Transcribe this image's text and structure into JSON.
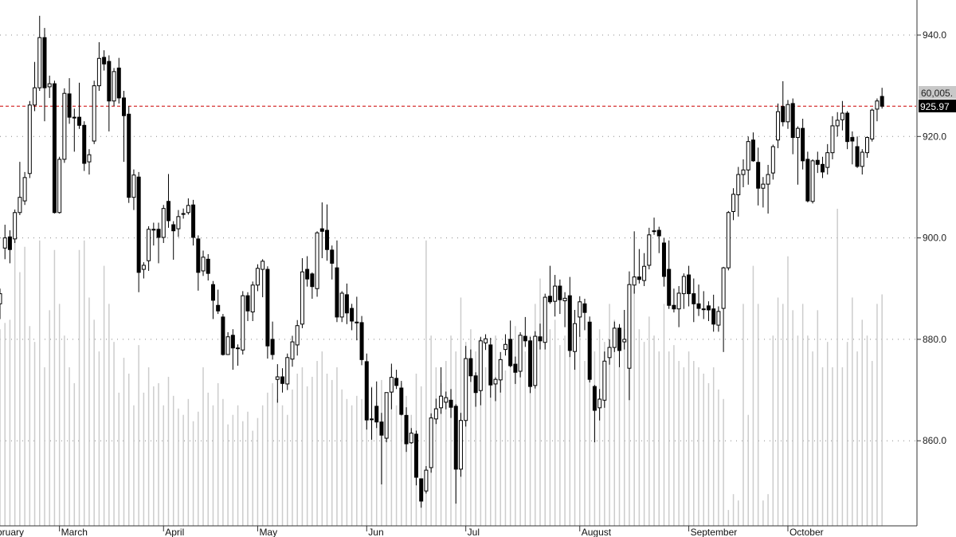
{
  "chart_data": {
    "type": "candlestick",
    "title": "",
    "xlabel": "",
    "ylabel": "",
    "ylim": [
      844,
      947
    ],
    "grid": true,
    "y_ticks": [
      "860.0",
      "880.0",
      "900.0",
      "920.0",
      "940.0"
    ],
    "y_tick_values": [
      860,
      880,
      900,
      920,
      940
    ],
    "months": [
      {
        "label": "bruary",
        "index": -5
      },
      {
        "label": "March",
        "index": 12
      },
      {
        "label": "April",
        "index": 33
      },
      {
        "label": "May",
        "index": 52
      },
      {
        "label": "Jun",
        "index": 74
      },
      {
        "label": "Jul",
        "index": 94
      },
      {
        "label": "August",
        "index": 117
      },
      {
        "label": "September",
        "index": 139
      },
      {
        "label": "October",
        "index": 159
      }
    ],
    "last_price": 925.97,
    "last_price_label": "925.97",
    "volume_label": "60,005.",
    "colors": {
      "up": "#ffffff",
      "down": "#000000",
      "wick": "#000000",
      "volume": "#cccccc",
      "price_line": "#cc0000",
      "grid": "#888888"
    },
    "ohlc": [
      [
        887,
        890,
        884,
        889
      ],
      [
        898,
        902.6,
        895.8,
        900
      ],
      [
        900.2,
        901.5,
        895,
        897.7
      ],
      [
        899.8,
        905.6,
        899,
        905
      ],
      [
        905,
        915,
        904.5,
        908
      ],
      [
        907.3,
        913,
        906.5,
        911.9
      ],
      [
        912.7,
        927,
        911.8,
        926.2
      ],
      [
        926.2,
        934.7,
        925,
        929.6
      ],
      [
        929.6,
        943.8,
        929,
        939.5
      ],
      [
        939.5,
        941.4,
        923,
        929.6
      ],
      [
        929.8,
        932,
        927.6,
        930.4
      ],
      [
        930.4,
        931,
        904.8,
        905
      ],
      [
        905,
        916,
        904.8,
        915.5
      ],
      [
        915.5,
        929.5,
        914.8,
        928.5
      ],
      [
        928.4,
        931.5,
        922.5,
        923.8
      ],
      [
        923.8,
        925.5,
        917,
        923.8
      ],
      [
        923.8,
        930.6,
        921.5,
        922.2
      ],
      [
        922.2,
        923,
        913.2,
        914.7
      ],
      [
        915,
        917.5,
        912.5,
        916.4
      ],
      [
        919.1,
        931,
        918.5,
        930
      ],
      [
        930,
        938.6,
        929,
        935.4
      ],
      [
        935.6,
        937,
        933,
        934.3
      ],
      [
        934.8,
        936,
        921,
        927
      ],
      [
        927,
        933.5,
        926,
        932.8
      ],
      [
        933.5,
        935.5,
        926.5,
        927.6
      ],
      [
        927.6,
        929,
        915,
        924.1
      ],
      [
        924.4,
        926,
        906.9,
        908
      ],
      [
        908,
        913.5,
        905.5,
        912.4
      ],
      [
        912,
        913,
        889.3,
        893.2
      ],
      [
        893.8,
        895.2,
        892,
        894.6
      ],
      [
        895.5,
        902.3,
        893.5,
        901.7
      ],
      [
        901.7,
        903,
        898.5,
        901.7
      ],
      [
        901.7,
        903,
        895,
        900.1
      ],
      [
        900.1,
        906.5,
        899,
        905.8
      ],
      [
        907.2,
        912.6,
        902,
        903.4
      ],
      [
        902.6,
        903.3,
        895.7,
        901.4
      ],
      [
        901.8,
        905.5,
        900.2,
        904.2
      ],
      [
        904.8,
        905.8,
        903.8,
        904.8
      ],
      [
        905,
        907.8,
        904.6,
        906.4
      ],
      [
        906.5,
        907.5,
        898.5,
        900.1
      ],
      [
        899.8,
        900.5,
        889.6,
        893.2
      ],
      [
        893.5,
        897.5,
        892.5,
        896.2
      ],
      [
        895.8,
        896.8,
        891.6,
        893
      ],
      [
        890.8,
        891.5,
        884,
        887.7
      ],
      [
        886.7,
        889.8,
        885,
        885.6
      ],
      [
        884.4,
        885,
        876.8,
        877
      ],
      [
        877,
        881.4,
        877,
        880.5
      ],
      [
        880.8,
        882,
        874,
        878.3
      ],
      [
        878.3,
        879,
        874.8,
        878.3
      ],
      [
        877.9,
        889.5,
        877,
        888.6
      ],
      [
        888.6,
        889.3,
        883.6,
        885.6
      ],
      [
        885.4,
        891.4,
        883.6,
        890.7
      ],
      [
        890.7,
        894.8,
        889.5,
        894
      ],
      [
        893.8,
        895.8,
        888.3,
        895.4
      ],
      [
        893.8,
        894.4,
        876.2,
        878.7
      ],
      [
        880,
        883.5,
        876,
        877
      ],
      [
        872.1,
        875.1,
        867.5,
        872.6
      ],
      [
        872.6,
        874.3,
        869.5,
        871.3
      ],
      [
        871.2,
        877.2,
        870,
        876.4
      ],
      [
        876.1,
        880.7,
        874.6,
        879.5
      ],
      [
        878.9,
        883.8,
        876.8,
        882.7
      ],
      [
        883,
        896,
        882.2,
        893.3
      ],
      [
        893.8,
        896.4,
        890.4,
        891.9
      ],
      [
        892.9,
        893.2,
        888,
        890.4
      ],
      [
        890,
        901.3,
        888.4,
        901
      ],
      [
        901.8,
        907,
        896,
        901.3
      ],
      [
        901.5,
        906.6,
        895.5,
        897.7
      ],
      [
        897.6,
        898.5,
        891.8,
        895
      ],
      [
        894.1,
        899.5,
        883.4,
        884.4
      ],
      [
        884.4,
        889.5,
        883.4,
        889.1
      ],
      [
        888.8,
        891,
        883,
        885.2
      ],
      [
        886.1,
        887,
        881.8,
        883.6
      ],
      [
        883.4,
        888.4,
        879.8,
        883.4
      ],
      [
        883.3,
        884.6,
        874.9,
        876
      ],
      [
        875.6,
        877.2,
        862.2,
        864.1
      ],
      [
        864.3,
        870.5,
        860.2,
        864.3
      ],
      [
        866.8,
        871.7,
        862.5,
        863.7
      ],
      [
        863.7,
        865.5,
        851.4,
        861.1
      ],
      [
        860.5,
        869.5,
        859.7,
        869.5
      ],
      [
        869.6,
        875.2,
        866.2,
        872.5
      ],
      [
        872.3,
        874,
        870.2,
        870.9
      ],
      [
        870.4,
        871.8,
        865,
        865.2
      ],
      [
        865,
        866.6,
        857.8,
        859.4
      ],
      [
        859.6,
        862.5,
        859.4,
        861.5
      ],
      [
        861.3,
        862,
        851.2,
        852.8
      ],
      [
        852.5,
        852.5,
        846.8,
        848.1
      ],
      [
        850.1,
        855,
        849.6,
        854.2
      ],
      [
        854.7,
        865.4,
        853.7,
        864.5
      ],
      [
        864.3,
        868.3,
        863.3,
        866.3
      ],
      [
        866.5,
        874.5,
        865.3,
        868.8
      ],
      [
        867.6,
        869.7,
        866.2,
        868.5
      ],
      [
        868,
        870.2,
        864.5,
        866.6
      ],
      [
        866.8,
        867.2,
        847.6,
        854.4
      ],
      [
        854.4,
        865.5,
        852.9,
        864
      ],
      [
        864,
        878.7,
        862.8,
        876.2
      ],
      [
        876.2,
        878,
        871.6,
        872.8
      ],
      [
        872.8,
        873.5,
        866.7,
        869.5
      ],
      [
        869.9,
        880.5,
        867,
        879.7
      ],
      [
        879.3,
        881,
        877.9,
        880.1
      ],
      [
        878.9,
        880.3,
        868.5,
        871
      ],
      [
        871.2,
        872.5,
        867.8,
        872.1
      ],
      [
        872,
        877.5,
        869.5,
        876
      ],
      [
        878,
        881,
        876.8,
        879
      ],
      [
        880,
        883.7,
        874.5,
        874.8
      ],
      [
        875.1,
        876.6,
        871.2,
        873.5
      ],
      [
        873.7,
        881.4,
        872.5,
        880.8
      ],
      [
        880.6,
        884.4,
        878.5,
        879.7
      ],
      [
        879.7,
        880.5,
        869.4,
        870.7
      ],
      [
        870.9,
        881.6,
        870.3,
        880.6
      ],
      [
        880.5,
        883.1,
        878,
        879.7
      ],
      [
        879.4,
        889,
        878,
        888.3
      ],
      [
        888.5,
        894.5,
        887,
        887.4
      ],
      [
        887.5,
        892.7,
        884.5,
        890.5
      ],
      [
        890.5,
        891.8,
        885,
        887.8
      ],
      [
        887.6,
        889.3,
        882.4,
        888.1
      ],
      [
        888.6,
        892.3,
        876.5,
        877.8
      ],
      [
        877.6,
        885.8,
        874,
        883.1
      ],
      [
        884.4,
        888.5,
        880.5,
        887.4
      ],
      [
        887,
        888,
        881.8,
        885.3
      ],
      [
        883.4,
        884.5,
        871.5,
        872.1
      ],
      [
        870.7,
        871,
        859.7,
        866
      ],
      [
        866.5,
        870.2,
        864,
        868.2
      ],
      [
        868,
        877.6,
        866.5,
        875.7
      ],
      [
        876.4,
        880,
        875,
        878.4
      ],
      [
        878.4,
        883.5,
        877.5,
        882.2
      ],
      [
        882.2,
        883,
        874.5,
        877.8
      ],
      [
        879.5,
        885.8,
        878,
        880
      ],
      [
        874.3,
        893.4,
        868,
        890.8
      ],
      [
        890.7,
        901.3,
        889,
        892.3
      ],
      [
        892.3,
        897.8,
        891,
        891.8
      ],
      [
        891.6,
        897,
        890.5,
        894.4
      ],
      [
        894.6,
        902,
        893.8,
        900.6
      ],
      [
        901.4,
        904,
        900.6,
        901.4
      ],
      [
        901.5,
        902.2,
        897,
        900.4
      ],
      [
        899,
        900,
        890.4,
        892.4
      ],
      [
        893.8,
        899.5,
        886,
        886.7
      ],
      [
        886.7,
        890,
        885.3,
        886
      ],
      [
        886,
        890.5,
        882.4,
        889.1
      ],
      [
        889,
        893,
        886,
        892.4
      ],
      [
        892.7,
        894.5,
        886.5,
        889
      ],
      [
        889,
        892,
        883.4,
        887
      ],
      [
        887,
        890.8,
        884.6,
        886.1
      ],
      [
        886,
        889.5,
        884,
        886
      ],
      [
        886.6,
        887.5,
        883.6,
        885.8
      ],
      [
        886,
        888.8,
        881.5,
        883
      ],
      [
        882.8,
        886.5,
        881.5,
        885.5
      ],
      [
        886.1,
        894.3,
        877.5,
        894.1
      ],
      [
        894.1,
        905.3,
        893.6,
        905
      ],
      [
        905.2,
        909.8,
        903.5,
        908.6
      ],
      [
        908.5,
        914,
        904.2,
        912.5
      ],
      [
        912.5,
        915.5,
        910,
        913.4
      ],
      [
        913.4,
        920,
        910.5,
        919
      ],
      [
        919.3,
        920.8,
        915,
        915.2
      ],
      [
        914.9,
        917.8,
        906.4,
        909.8
      ],
      [
        909.8,
        912,
        906,
        910.6
      ],
      [
        910.6,
        914.4,
        904.8,
        912.5
      ],
      [
        912.8,
        918.4,
        911.5,
        918
      ],
      [
        919.3,
        926.5,
        917.7,
        924.9
      ],
      [
        925.9,
        930.9,
        922,
        922.9
      ],
      [
        922.9,
        927.2,
        921.5,
        926.3
      ],
      [
        926.5,
        927.5,
        916.5,
        919.8
      ],
      [
        919.8,
        922,
        910.5,
        921.6
      ],
      [
        921.6,
        923.5,
        913.5,
        915.2
      ],
      [
        915.5,
        917,
        907,
        907.3
      ],
      [
        907.2,
        915.5,
        906.8,
        915.2
      ],
      [
        915.3,
        917,
        912.8,
        914.5
      ],
      [
        914.5,
        916,
        911.8,
        913
      ],
      [
        913.9,
        918.5,
        912.5,
        916.8
      ],
      [
        916.8,
        924,
        915.5,
        922.1
      ],
      [
        922.1,
        924.8,
        920,
        923.2
      ],
      [
        923.3,
        927,
        921.2,
        924.6
      ],
      [
        924.6,
        925,
        917.5,
        919
      ],
      [
        919.8,
        921,
        914.5,
        919.1
      ],
      [
        918,
        920,
        913.8,
        914.1
      ],
      [
        914.1,
        917.5,
        912.5,
        916.9
      ],
      [
        916.8,
        920,
        915.8,
        919.8
      ],
      [
        919.5,
        925.5,
        919,
        925.2
      ],
      [
        925.4,
        927.5,
        923,
        927
      ],
      [
        927.9,
        929.6,
        925.5,
        925.97
      ]
    ],
    "volume_relative": [
      0.62,
      0.64,
      0.65,
      0.9,
      0.8,
      0.88,
      0.63,
      0.58,
      0.9,
      0.5,
      0.68,
      0.87,
      0.7,
      0.6,
      0.5,
      0.45,
      0.87,
      0.9,
      0.72,
      0.65,
      0.55,
      0.82,
      0.7,
      0.58,
      0.42,
      0.53,
      0.48,
      0.38,
      0.57,
      0.42,
      0.5,
      0.44,
      0.45,
      0.38,
      0.47,
      0.41,
      0.37,
      0.35,
      0.4,
      0.33,
      0.36,
      0.5,
      0.42,
      0.38,
      0.45,
      0.4,
      0.32,
      0.35,
      0.38,
      0.33,
      0.36,
      0.3,
      0.34,
      0.38,
      0.42,
      0.45,
      0.4,
      0.38,
      0.35,
      0.43,
      0.48,
      0.5,
      0.44,
      0.47,
      0.52,
      0.55,
      0.48,
      0.46,
      0.5,
      0.43,
      0.4,
      0.38,
      0.41,
      0.4,
      0.36,
      0.44,
      0.39,
      0.46,
      0.42,
      0.5,
      0.38,
      0.45,
      0.41,
      0.35,
      0.48,
      0.44,
      0.9,
      0.6,
      0.5,
      0.45,
      0.52,
      0.6,
      0.55,
      0.72,
      0.58,
      0.62,
      0.55,
      0.48,
      0.5,
      0.56,
      0.6,
      0.52,
      0.49,
      0.58,
      0.63,
      0.5,
      0.55,
      0.6,
      0.7,
      0.78,
      0.72,
      0.62,
      0.65,
      0.57,
      0.6,
      0.68,
      0.58,
      0.6,
      0.52,
      0.64,
      0.55,
      0.62,
      0.58,
      0.7,
      0.65,
      0.6,
      0.62,
      0.72,
      0.75,
      0.62,
      0.58,
      0.66,
      0.6,
      0.55,
      0.7,
      0.55,
      0.57,
      0.52,
      0.5,
      0.55,
      0.52,
      0.5,
      0.48,
      0.45,
      0.5,
      0.43,
      0.4,
      0.05,
      0.1,
      0.08,
      0.7,
      0.35,
      0.82,
      0.7,
      0.08,
      0.1,
      0.6,
      0.72,
      0.7,
      0.85,
      0.68,
      0.6,
      0.7,
      0.6,
      0.55,
      0.68,
      0.5,
      0.58,
      0.5,
      1.0,
      0.5,
      0.58,
      0.72,
      0.55,
      0.65,
      0.6,
      0.52,
      0.7,
      0.73
    ]
  }
}
